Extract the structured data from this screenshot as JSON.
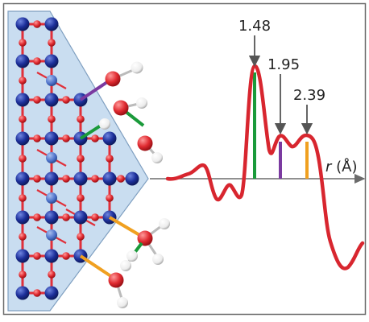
{
  "figure": {
    "peak_labels": {
      "p1": "1.48",
      "p2": "1.95",
      "p3": "2.39"
    },
    "axis_label": {
      "variable": "r",
      "unit": " (Å)"
    },
    "colors": {
      "frame": "#6b6b6b",
      "crystal_fill": "#c9ddf0",
      "crystal_edge": "#7f9fc0",
      "lattice_bond": "#e0303a",
      "blue_atom": "#1c2f9a",
      "light_blue_atom": "#4a6fc8",
      "red_atom": "#e02a30",
      "white_atom": "#f2f2f2",
      "curve": "#d8262f",
      "bond_green": "#1a9a3a",
      "bond_purple": "#7b3aa0",
      "bond_orange": "#f0a020",
      "arrow": "#555555"
    }
  }
}
